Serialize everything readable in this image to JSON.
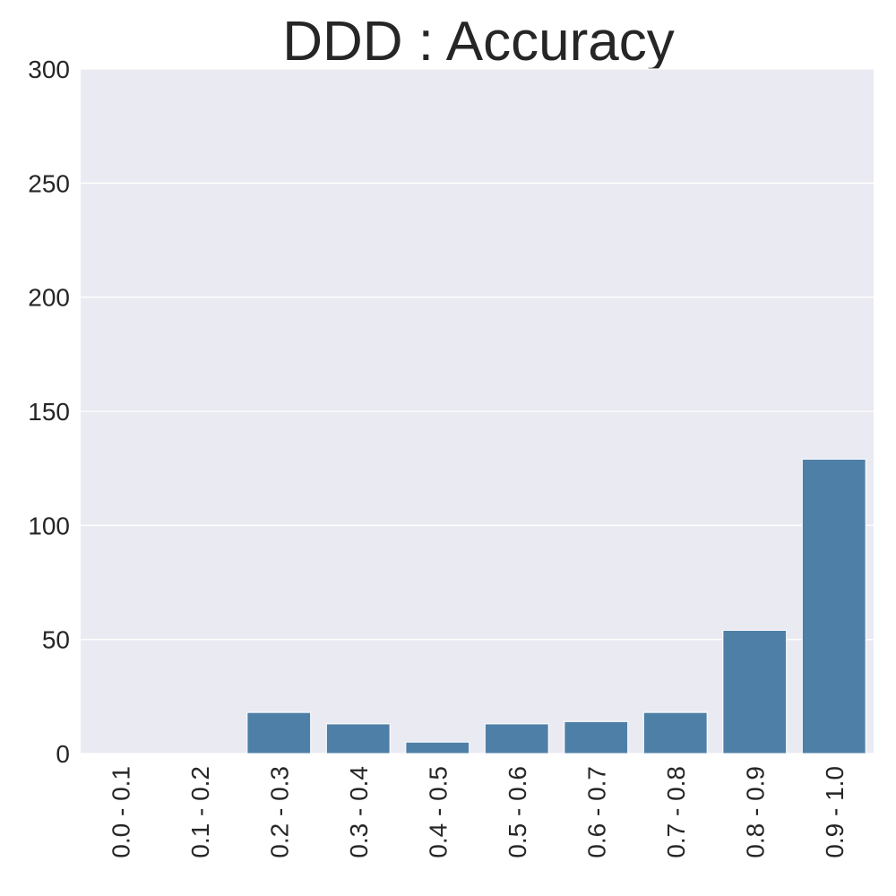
{
  "chart_data": {
    "type": "bar",
    "title": "DDD : Accuracy",
    "xlabel": "",
    "ylabel": "",
    "categories": [
      "0.0 - 0.1",
      "0.1 - 0.2",
      "0.2 - 0.3",
      "0.3 - 0.4",
      "0.4 - 0.5",
      "0.5 - 0.6",
      "0.6 - 0.7",
      "0.7 - 0.8",
      "0.8 - 0.9",
      "0.9 - 1.0"
    ],
    "values": [
      0,
      0,
      18,
      13,
      5,
      13,
      14,
      18,
      54,
      129
    ],
    "ylim": [
      0,
      300
    ],
    "yticks": [
      0,
      50,
      100,
      150,
      200,
      250,
      300
    ],
    "grid": true,
    "bar_color": "#4e7fa6",
    "plot_background": "#eaeaf2",
    "grid_color": "#ffffff",
    "text_color": "#262626"
  }
}
